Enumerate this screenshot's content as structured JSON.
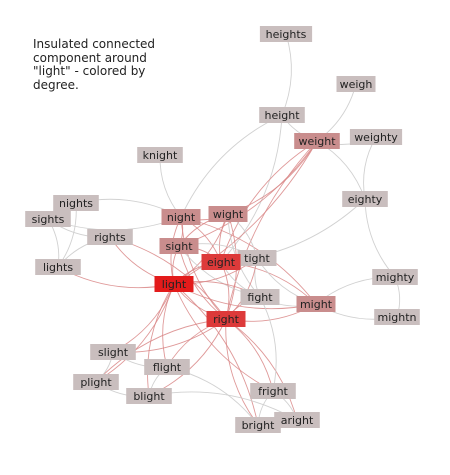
{
  "caption": "Insulated connected component around \"light\" - colored by degree.",
  "colors": {
    "low": "#c9bebe",
    "mid": "#c98d8d",
    "high": "#dd3a3a",
    "max": "#e31b1b",
    "edge_light": "#cfcfcf",
    "edge_red": "#d98787"
  },
  "nodes": [
    {
      "id": "heights",
      "label": "heights",
      "level": "low"
    },
    {
      "id": "weigh",
      "label": "weigh",
      "level": "low"
    },
    {
      "id": "height",
      "label": "height",
      "level": "low"
    },
    {
      "id": "weight",
      "label": "weight",
      "level": "mid"
    },
    {
      "id": "weighty",
      "label": "weighty",
      "level": "low"
    },
    {
      "id": "knight",
      "label": "knight",
      "level": "low"
    },
    {
      "id": "nights",
      "label": "nights",
      "level": "low"
    },
    {
      "id": "eighty",
      "label": "eighty",
      "level": "low"
    },
    {
      "id": "sights",
      "label": "sights",
      "level": "low"
    },
    {
      "id": "night",
      "label": "night",
      "level": "mid"
    },
    {
      "id": "wight",
      "label": "wight",
      "level": "mid"
    },
    {
      "id": "rights",
      "label": "rights",
      "level": "low"
    },
    {
      "id": "sight",
      "label": "sight",
      "level": "mid"
    },
    {
      "id": "tight",
      "label": "tight",
      "level": "low"
    },
    {
      "id": "eight",
      "label": "eight",
      "level": "high"
    },
    {
      "id": "lights",
      "label": "lights",
      "level": "low"
    },
    {
      "id": "mighty",
      "label": "mighty",
      "level": "low"
    },
    {
      "id": "light",
      "label": "light",
      "level": "max"
    },
    {
      "id": "fight",
      "label": "fight",
      "level": "low"
    },
    {
      "id": "might",
      "label": "might",
      "level": "mid"
    },
    {
      "id": "mightn",
      "label": "mightn",
      "level": "low"
    },
    {
      "id": "right",
      "label": "right",
      "level": "high"
    },
    {
      "id": "slight",
      "label": "slight",
      "level": "low"
    },
    {
      "id": "flight",
      "label": "flight",
      "level": "low"
    },
    {
      "id": "plight",
      "label": "plight",
      "level": "low"
    },
    {
      "id": "blight",
      "label": "blight",
      "level": "low"
    },
    {
      "id": "fright",
      "label": "fright",
      "level": "low"
    },
    {
      "id": "bright",
      "label": "bright",
      "level": "low"
    },
    {
      "id": "aright",
      "label": "aright",
      "level": "low"
    }
  ],
  "edges": [
    [
      "heights",
      "height"
    ],
    [
      "height",
      "weight"
    ],
    [
      "weigh",
      "weight"
    ],
    [
      "weight",
      "weighty"
    ],
    [
      "weight",
      "eighty"
    ],
    [
      "weighty",
      "eighty"
    ],
    [
      "eighty",
      "eight"
    ],
    [
      "eighty",
      "mighty"
    ],
    [
      "mighty",
      "mightn"
    ],
    [
      "mighty",
      "might"
    ],
    [
      "mightn",
      "might"
    ],
    [
      "knight",
      "night"
    ],
    [
      "nights",
      "night"
    ],
    [
      "nights",
      "sights"
    ],
    [
      "nights",
      "lights"
    ],
    [
      "sights",
      "rights"
    ],
    [
      "sights",
      "lights"
    ],
    [
      "sights",
      "night"
    ],
    [
      "rights",
      "right"
    ],
    [
      "lights",
      "light"
    ],
    [
      "lights",
      "rights"
    ],
    [
      "rights",
      "light"
    ],
    [
      "height",
      "eight"
    ],
    [
      "height",
      "night"
    ],
    [
      "weight",
      "wight"
    ],
    [
      "weight",
      "eight"
    ],
    [
      "weight",
      "light"
    ],
    [
      "weight",
      "right"
    ],
    [
      "weight",
      "sight"
    ],
    [
      "night",
      "wight"
    ],
    [
      "night",
      "sight"
    ],
    [
      "night",
      "light"
    ],
    [
      "night",
      "eight"
    ],
    [
      "night",
      "right"
    ],
    [
      "night",
      "might"
    ],
    [
      "wight",
      "sight"
    ],
    [
      "wight",
      "light"
    ],
    [
      "wight",
      "eight"
    ],
    [
      "wight",
      "right"
    ],
    [
      "wight",
      "fight"
    ],
    [
      "wight",
      "tight"
    ],
    [
      "sight",
      "light"
    ],
    [
      "sight",
      "eight"
    ],
    [
      "sight",
      "right"
    ],
    [
      "sight",
      "tight"
    ],
    [
      "sight",
      "fight"
    ],
    [
      "eight",
      "tight"
    ],
    [
      "eight",
      "light"
    ],
    [
      "eight",
      "right"
    ],
    [
      "eight",
      "fight"
    ],
    [
      "eight",
      "might"
    ],
    [
      "tight",
      "fight"
    ],
    [
      "tight",
      "right"
    ],
    [
      "tight",
      "might"
    ],
    [
      "tight",
      "light"
    ],
    [
      "light",
      "right"
    ],
    [
      "light",
      "fight"
    ],
    [
      "light",
      "might"
    ],
    [
      "light",
      "slight"
    ],
    [
      "light",
      "flight"
    ],
    [
      "light",
      "plight"
    ],
    [
      "light",
      "blight"
    ],
    [
      "light",
      "bright"
    ],
    [
      "light",
      "fright"
    ],
    [
      "right",
      "fight"
    ],
    [
      "right",
      "might"
    ],
    [
      "right",
      "fright"
    ],
    [
      "right",
      "bright"
    ],
    [
      "right",
      "aright"
    ],
    [
      "right",
      "flight"
    ],
    [
      "right",
      "blight"
    ],
    [
      "right",
      "plight"
    ],
    [
      "right",
      "slight"
    ],
    [
      "fight",
      "might"
    ],
    [
      "fight",
      "fright"
    ],
    [
      "slight",
      "flight"
    ],
    [
      "slight",
      "plight"
    ],
    [
      "flight",
      "blight"
    ],
    [
      "flight",
      "bright"
    ],
    [
      "plight",
      "blight"
    ],
    [
      "blight",
      "aright"
    ],
    [
      "fright",
      "bright"
    ],
    [
      "fright",
      "aright"
    ],
    [
      "bright",
      "aright"
    ]
  ]
}
